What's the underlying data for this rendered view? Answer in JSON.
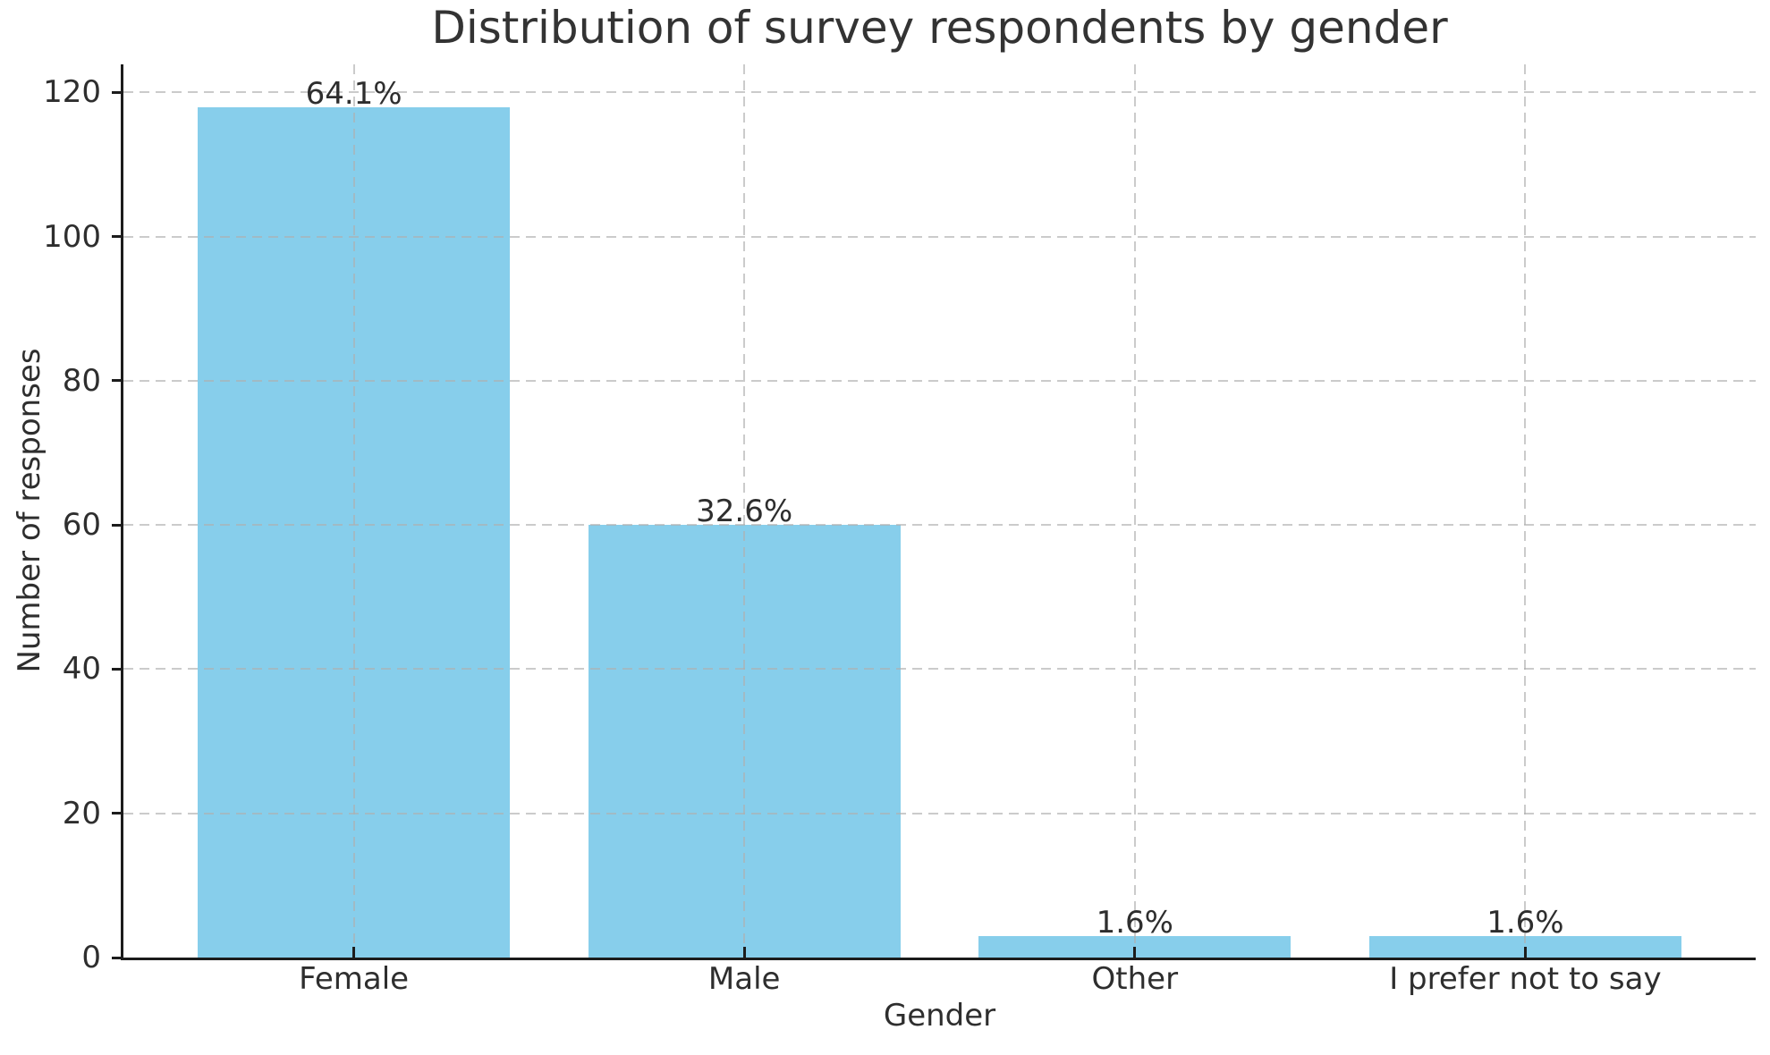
{
  "chart_data": {
    "type": "bar",
    "title": "Distribution of survey respondents by gender",
    "xlabel": "Gender",
    "ylabel": "Number of responses",
    "categories": [
      "Female",
      "Male",
      "Other",
      "I prefer not to say"
    ],
    "values": [
      118,
      60,
      3,
      3
    ],
    "bar_labels": [
      "64.1%",
      "32.6%",
      "1.6%",
      "1.6%"
    ],
    "yticks": [
      0,
      20,
      40,
      60,
      80,
      100,
      120
    ],
    "ylim": [
      0,
      123.9
    ],
    "grid": "dashed gray, horizontal and vertical at ticks, drawn above bars",
    "legend": "none",
    "bar_color": "#87CEEB",
    "grid_color": "#cbcbcb",
    "spine_color": "#1c1c1c",
    "text_color": "#2e2e2e",
    "background_color": "#ffffff"
  }
}
